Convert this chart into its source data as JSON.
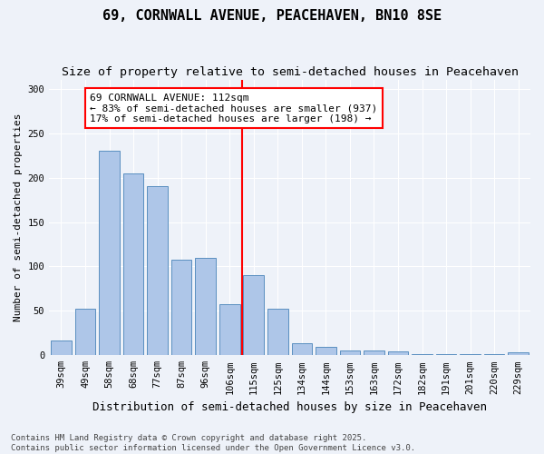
{
  "title": "69, CORNWALL AVENUE, PEACEHAVEN, BN10 8SE",
  "subtitle": "Size of property relative to semi-detached houses in Peacehaven",
  "xlabel": "Distribution of semi-detached houses by size in Peacehaven",
  "ylabel": "Number of semi-detached properties",
  "categories": [
    "39sqm",
    "49sqm",
    "58sqm",
    "68sqm",
    "77sqm",
    "87sqm",
    "96sqm",
    "106sqm",
    "115sqm",
    "125sqm",
    "134sqm",
    "144sqm",
    "153sqm",
    "163sqm",
    "172sqm",
    "182sqm",
    "191sqm",
    "201sqm",
    "220sqm",
    "229sqm"
  ],
  "values": [
    17,
    52,
    230,
    205,
    190,
    108,
    110,
    58,
    90,
    52,
    14,
    10,
    5,
    5,
    4,
    1,
    1,
    1,
    1,
    3
  ],
  "bar_color": "#aec6e8",
  "bar_edge_color": "#5a8fc0",
  "vline_x_index": 8,
  "vline_color": "red",
  "annotation_text": "69 CORNWALL AVENUE: 112sqm\n← 83% of semi-detached houses are smaller (937)\n17% of semi-detached houses are larger (198) →",
  "annotation_box_color": "white",
  "annotation_box_edge": "red",
  "ylim": [
    0,
    310
  ],
  "yticks": [
    0,
    50,
    100,
    150,
    200,
    250,
    300
  ],
  "background_color": "#eef2f9",
  "footer_text": "Contains HM Land Registry data © Crown copyright and database right 2025.\nContains public sector information licensed under the Open Government Licence v3.0.",
  "title_fontsize": 11,
  "subtitle_fontsize": 9.5,
  "xlabel_fontsize": 9,
  "ylabel_fontsize": 8,
  "tick_fontsize": 7.5,
  "annotation_fontsize": 8,
  "footer_fontsize": 6.5
}
